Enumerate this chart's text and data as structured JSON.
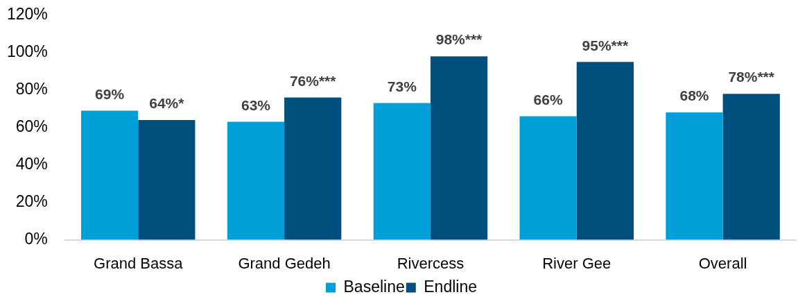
{
  "chart_data": {
    "type": "bar",
    "categories": [
      "Grand Bassa",
      "Grand Gedeh",
      "Rivercess",
      "River Gee",
      "Overall"
    ],
    "series": [
      {
        "name": "Baseline",
        "color": "#009fd7",
        "values": [
          69,
          63,
          73,
          66,
          68
        ],
        "value_labels": [
          "69%",
          "63%",
          "73%",
          "66%",
          "68%"
        ]
      },
      {
        "name": "Endline",
        "color": "#00507f",
        "values": [
          64,
          76,
          98,
          95,
          78
        ],
        "value_labels": [
          "64%*",
          "76%***",
          "98%***",
          "95%***",
          "78%***"
        ]
      }
    ],
    "ylim": [
      0,
      120
    ],
    "yticks": [
      {
        "value": 0,
        "label": "0%"
      },
      {
        "value": 20,
        "label": "20%"
      },
      {
        "value": 40,
        "label": "40%"
      },
      {
        "value": 60,
        "label": "60%"
      },
      {
        "value": 80,
        "label": "80%"
      },
      {
        "value": 100,
        "label": "100%"
      },
      {
        "value": 120,
        "label": "120%"
      }
    ],
    "legend": "bottom"
  }
}
